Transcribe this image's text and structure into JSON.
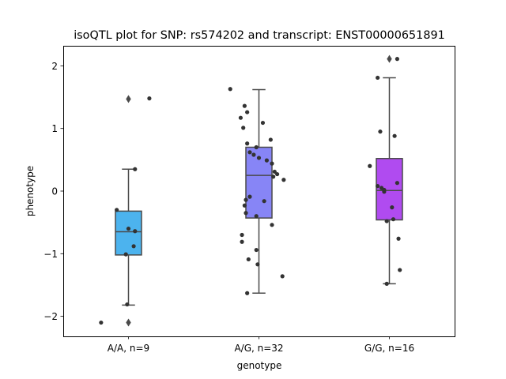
{
  "chart_data": {
    "type": "box",
    "title": "isoQTL plot for SNP: rs574202 and transcript: ENST00000651891",
    "xlabel": "genotype",
    "ylabel": "phenotype",
    "ylim": [
      -2.32,
      2.32
    ],
    "yticks": [
      -2,
      -1,
      0,
      1,
      2
    ],
    "ytick_labels": [
      "−2",
      "−1",
      "0",
      "1",
      "2"
    ],
    "grid": false,
    "categories": [
      "A/A, n=9",
      "A/G, n=32",
      "G/G, n=16"
    ],
    "boxes": [
      {
        "name": "A/A, n=9",
        "color": "#4cb3ee",
        "q1": -1.02,
        "median": -0.65,
        "q3": -0.32,
        "whisker_low": -1.82,
        "whisker_high": 0.35,
        "outliers": [
          1.47,
          -2.1
        ]
      },
      {
        "name": "A/G, n=32",
        "color": "#8785f6",
        "q1": -0.43,
        "median": 0.25,
        "q3": 0.7,
        "whisker_low": -1.63,
        "whisker_high": 1.62,
        "outliers": []
      },
      {
        "name": "G/G, n=16",
        "color": "#b04bf0",
        "q1": -0.46,
        "median": 0.01,
        "q3": 0.52,
        "whisker_low": -1.48,
        "whisker_high": 1.81,
        "outliers": [
          2.11
        ]
      }
    ],
    "points": [
      {
        "cat": 0,
        "dx": 0.16,
        "y": 1.48
      },
      {
        "cat": 0,
        "dx": 0.05,
        "y": 0.35
      },
      {
        "cat": 0,
        "dx": -0.09,
        "y": -0.3
      },
      {
        "cat": 0,
        "dx": 0.0,
        "y": -0.6
      },
      {
        "cat": 0,
        "dx": 0.05,
        "y": -0.64
      },
      {
        "cat": 0,
        "dx": 0.04,
        "y": -0.88
      },
      {
        "cat": 0,
        "dx": -0.02,
        "y": -1.01
      },
      {
        "cat": 0,
        "dx": -0.01,
        "y": -1.81
      },
      {
        "cat": 0,
        "dx": -0.21,
        "y": -2.1
      },
      {
        "cat": 1,
        "dx": -0.22,
        "y": 1.63
      },
      {
        "cat": 1,
        "dx": -0.11,
        "y": 1.36
      },
      {
        "cat": 1,
        "dx": -0.09,
        "y": 1.26
      },
      {
        "cat": 1,
        "dx": -0.14,
        "y": 1.17
      },
      {
        "cat": 1,
        "dx": 0.03,
        "y": 1.09
      },
      {
        "cat": 1,
        "dx": -0.12,
        "y": 1.01
      },
      {
        "cat": 1,
        "dx": 0.09,
        "y": 0.82
      },
      {
        "cat": 1,
        "dx": -0.09,
        "y": 0.76
      },
      {
        "cat": 1,
        "dx": -0.02,
        "y": 0.7
      },
      {
        "cat": 1,
        "dx": -0.07,
        "y": 0.62
      },
      {
        "cat": 1,
        "dx": -0.04,
        "y": 0.58
      },
      {
        "cat": 1,
        "dx": 0.0,
        "y": 0.53
      },
      {
        "cat": 1,
        "dx": 0.06,
        "y": 0.49
      },
      {
        "cat": 1,
        "dx": 0.1,
        "y": 0.44
      },
      {
        "cat": 1,
        "dx": 0.12,
        "y": 0.31
      },
      {
        "cat": 1,
        "dx": 0.14,
        "y": 0.27
      },
      {
        "cat": 1,
        "dx": 0.11,
        "y": 0.23
      },
      {
        "cat": 1,
        "dx": 0.19,
        "y": 0.18
      },
      {
        "cat": 1,
        "dx": -0.07,
        "y": -0.09
      },
      {
        "cat": 1,
        "dx": -0.1,
        "y": -0.14
      },
      {
        "cat": 1,
        "dx": 0.04,
        "y": -0.16
      },
      {
        "cat": 1,
        "dx": -0.11,
        "y": -0.23
      },
      {
        "cat": 1,
        "dx": -0.1,
        "y": -0.35
      },
      {
        "cat": 1,
        "dx": -0.02,
        "y": -0.4
      },
      {
        "cat": 1,
        "dx": 0.1,
        "y": -0.54
      },
      {
        "cat": 1,
        "dx": -0.13,
        "y": -0.7
      },
      {
        "cat": 1,
        "dx": -0.13,
        "y": -0.81
      },
      {
        "cat": 1,
        "dx": -0.02,
        "y": -0.94
      },
      {
        "cat": 1,
        "dx": -0.08,
        "y": -1.09
      },
      {
        "cat": 1,
        "dx": -0.01,
        "y": -1.17
      },
      {
        "cat": 1,
        "dx": 0.18,
        "y": -1.36
      },
      {
        "cat": 1,
        "dx": -0.09,
        "y": -1.63
      },
      {
        "cat": 2,
        "dx": 0.06,
        "y": 2.11
      },
      {
        "cat": 2,
        "dx": -0.09,
        "y": 1.81
      },
      {
        "cat": 2,
        "dx": -0.07,
        "y": 0.95
      },
      {
        "cat": 2,
        "dx": 0.04,
        "y": 0.88
      },
      {
        "cat": 2,
        "dx": -0.15,
        "y": 0.4
      },
      {
        "cat": 2,
        "dx": 0.06,
        "y": 0.13
      },
      {
        "cat": 2,
        "dx": -0.09,
        "y": 0.08
      },
      {
        "cat": 2,
        "dx": -0.06,
        "y": 0.05
      },
      {
        "cat": 2,
        "dx": -0.04,
        "y": 0.02
      },
      {
        "cat": 2,
        "dx": -0.04,
        "y": -0.01
      },
      {
        "cat": 2,
        "dx": 0.02,
        "y": -0.26
      },
      {
        "cat": 2,
        "dx": 0.03,
        "y": -0.45
      },
      {
        "cat": 2,
        "dx": -0.02,
        "y": -0.48
      },
      {
        "cat": 2,
        "dx": 0.07,
        "y": -0.76
      },
      {
        "cat": 2,
        "dx": 0.08,
        "y": -1.26
      },
      {
        "cat": 2,
        "dx": -0.02,
        "y": -1.48
      }
    ]
  }
}
